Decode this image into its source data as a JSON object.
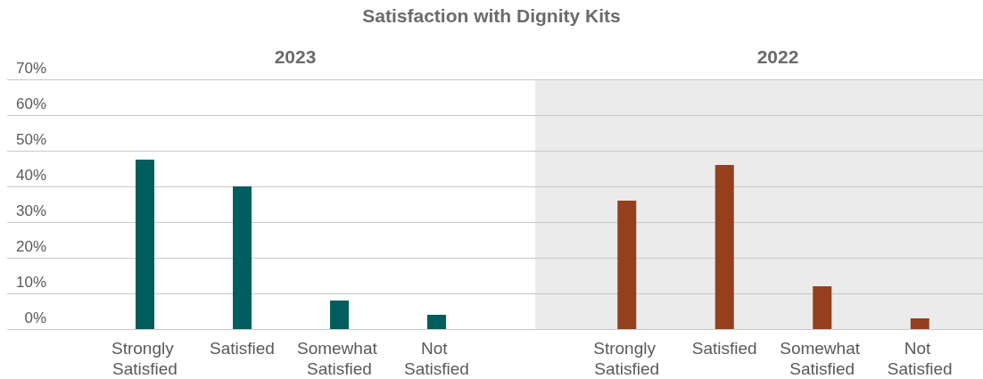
{
  "chart_data": [
    {
      "type": "bar",
      "title": "Satisfaction with Dignity Kits",
      "subtitle": "2023",
      "categories": [
        "Strongly Satisfied",
        "Satisfied",
        "Somewhat Satisfied",
        "Not Satisfied"
      ],
      "values": [
        47.5,
        40,
        8,
        4
      ],
      "color": "#005e5e",
      "ylim": [
        0,
        70
      ],
      "yticks": [
        {
          "value": 0,
          "label": "0%"
        },
        {
          "value": 10,
          "label": "10%"
        },
        {
          "value": 20,
          "label": "20%"
        },
        {
          "value": 30,
          "label": "30%"
        },
        {
          "value": 40,
          "label": "40%"
        },
        {
          "value": 50,
          "label": "50%"
        },
        {
          "value": 60,
          "label": "60%"
        },
        {
          "value": 70,
          "label": "70%"
        }
      ],
      "grid": "y"
    },
    {
      "type": "bar",
      "subtitle": "2022",
      "categories": [
        "Strongly Satisfied",
        "Satisfied",
        "Somewhat Satisfied",
        "Not Satisfied"
      ],
      "values": [
        36,
        46,
        12,
        3
      ],
      "color": "#94401e",
      "ylim": [
        0,
        70
      ],
      "yticks": [
        {
          "value": 0,
          "label": null
        },
        {
          "value": 10,
          "label": null
        },
        {
          "value": 20,
          "label": null
        },
        {
          "value": 30,
          "label": null
        },
        {
          "value": 40,
          "label": null
        },
        {
          "value": 50,
          "label": null
        },
        {
          "value": 60,
          "label": null
        },
        {
          "value": 70,
          "label": null
        }
      ],
      "grid": "y",
      "tick_labels": "x"
    }
  ]
}
